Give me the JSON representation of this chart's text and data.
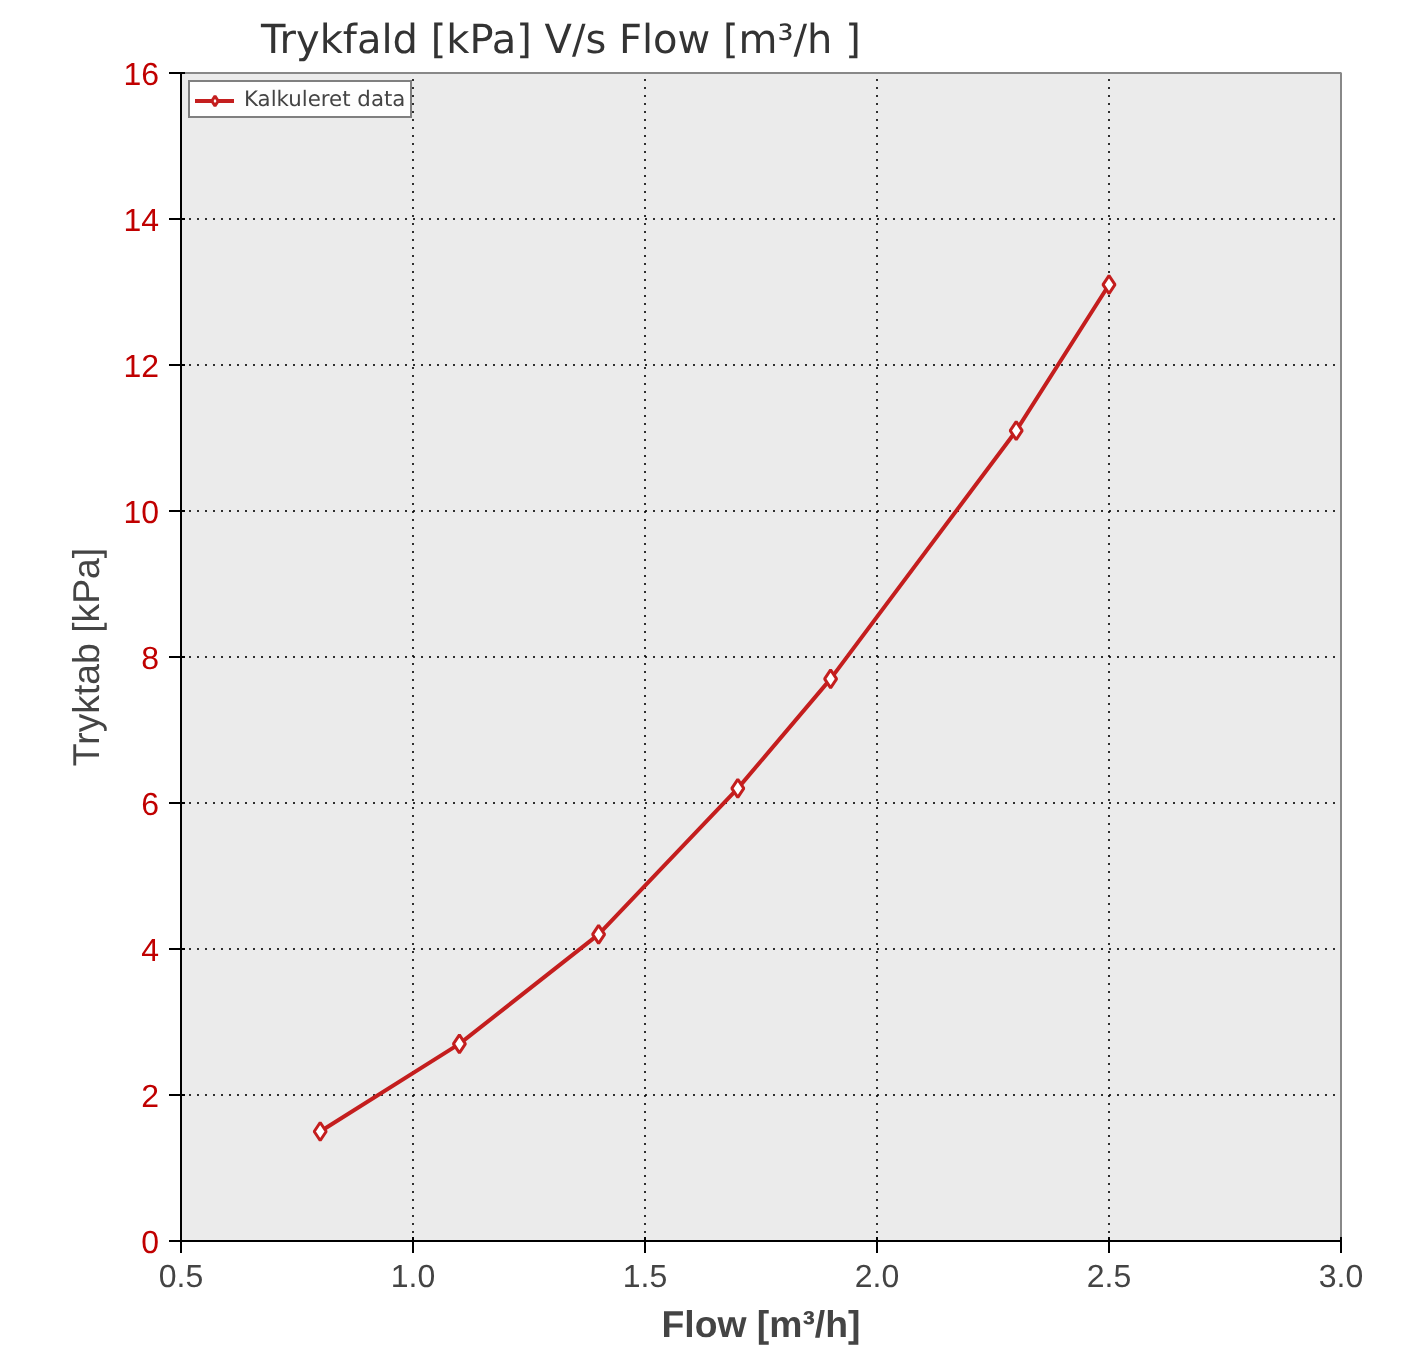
{
  "chart_data": {
    "type": "line",
    "title": "Trykfald [kPa] V/s Flow [m³/h ]",
    "xlabel": "Flow [m³/h]",
    "ylabel": "Tryktab [kPa]",
    "x": [
      0.8,
      1.1,
      1.4,
      1.7,
      1.9,
      2.3,
      2.5
    ],
    "series": [
      {
        "name": "Kalkuleret data",
        "color": "#c41e1e",
        "values": [
          1.5,
          2.7,
          4.2,
          6.2,
          7.7,
          11.1,
          13.1
        ]
      }
    ],
    "xlim": [
      0.5,
      3.0
    ],
    "xticks": [
      {
        "value": 0.5,
        "label": "0.5"
      },
      {
        "value": 1.0,
        "label": "1.0"
      },
      {
        "value": 1.5,
        "label": "1.5"
      },
      {
        "value": 2.0,
        "label": "2.0"
      },
      {
        "value": 2.5,
        "label": "2.5"
      },
      {
        "value": 3.0,
        "label": "3.0"
      }
    ],
    "ylim": [
      0,
      16
    ],
    "yticks": [
      0,
      2,
      4,
      6,
      8,
      10,
      12,
      14,
      16
    ],
    "grid": true,
    "legend": "top left",
    "marker": "diamond",
    "line_style": "solid"
  }
}
